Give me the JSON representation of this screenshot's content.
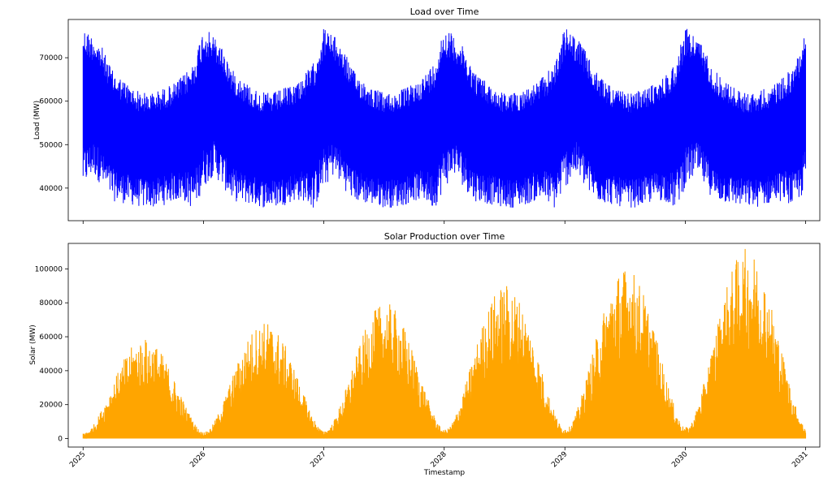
{
  "chart_data": [
    {
      "type": "line",
      "title": "Load over Time",
      "xlabel": "",
      "ylabel": "Load (MW)",
      "color": "#0000ff",
      "x_range": [
        "2025-01-01",
        "2031-01-01"
      ],
      "xlim": [
        "2024-11-17",
        "2031-02-13"
      ],
      "ylim": [
        32500,
        78800
      ],
      "yticks": [
        40000,
        50000,
        60000,
        70000
      ],
      "ytick_labels": [
        "40000",
        "50000",
        "60000",
        "70000"
      ],
      "series": [
        {
          "envelope": {
            "x": [
              "2025-01",
              "2025-02",
              "2025-03",
              "2025-04",
              "2025-05",
              "2025-06",
              "2025-07",
              "2025-08",
              "2025-09",
              "2025-10",
              "2025-11",
              "2025-12"
            ],
            "upper": [
              77000,
              75000,
              72000,
              67000,
              65000,
              63000,
              62000,
              62000,
              63000,
              64000,
              66000,
              69000
            ],
            "lower": [
              40000,
              43000,
              40000,
              37000,
              36500,
              36000,
              35500,
              35500,
              36000,
              37000,
              37000,
              35000
            ]
          }
        }
      ]
    },
    {
      "type": "area",
      "title": "Solar Production over Time",
      "xlabel": "Timestamp",
      "ylabel": "Solar (MW)",
      "color": "#ffa500",
      "x_range": [
        "2025-01-01",
        "2031-01-01"
      ],
      "xlim": [
        "2024-11-17",
        "2031-02-13"
      ],
      "ylim": [
        -5000,
        115000
      ],
      "yticks": [
        0,
        20000,
        40000,
        60000,
        80000,
        100000
      ],
      "ytick_labels": [
        "0",
        "20000",
        "40000",
        "60000",
        "80000",
        "100000"
      ],
      "xticks": [
        "2025",
        "2026",
        "2027",
        "2028",
        "2029",
        "2030",
        "2031"
      ],
      "series": [
        {
          "yearly_peak": {
            "x": [
              "2025",
              "2026",
              "2027",
              "2028",
              "2029",
              "2030"
            ],
            "peak": [
              59000,
              69000,
              80000,
              91000,
              101000,
              112000
            ]
          }
        }
      ]
    }
  ]
}
